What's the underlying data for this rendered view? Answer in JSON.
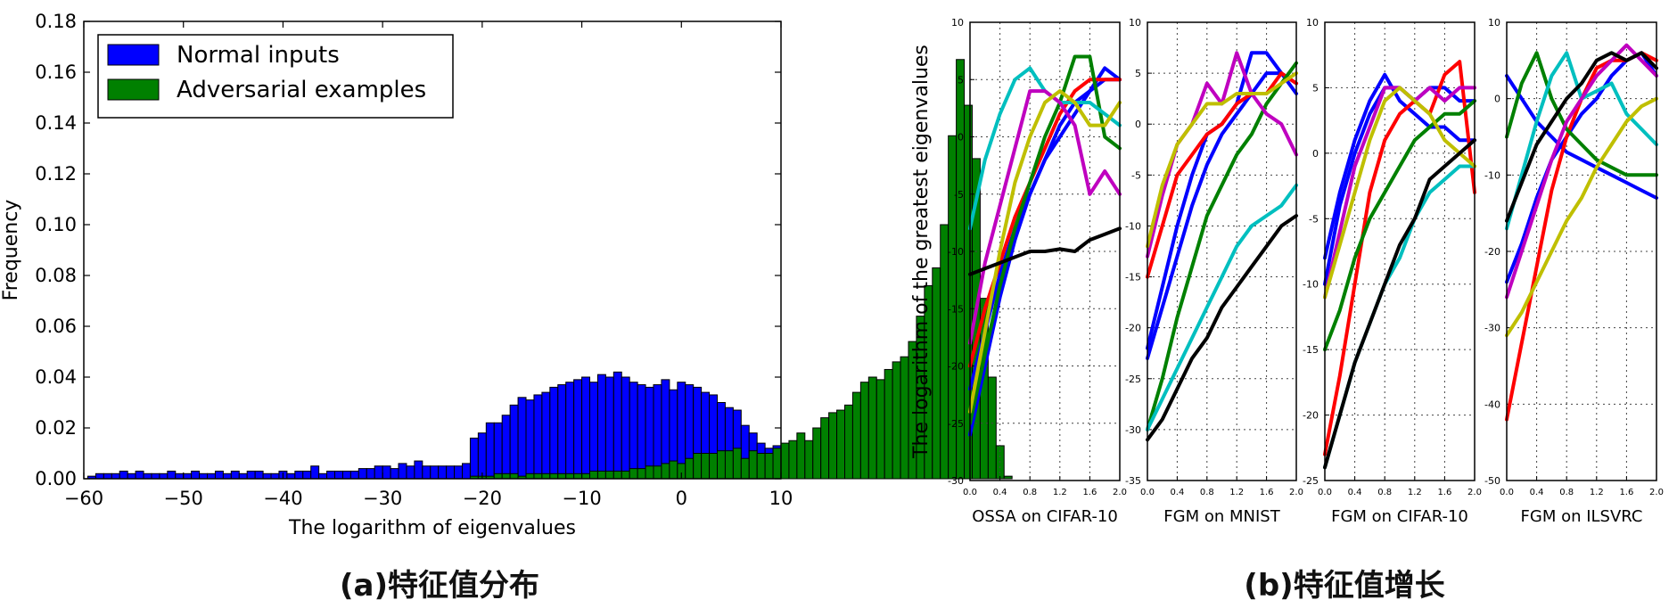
{
  "chart_data": [
    {
      "type": "bar",
      "subtype": "histogram",
      "caption": "(a)特征值分布",
      "xlabel": "The logarithm of eigenvalues",
      "ylabel": "Frequency",
      "xlim": [
        -60,
        10
      ],
      "ylim": [
        0,
        0.18
      ],
      "xticks": [
        -60,
        -50,
        -40,
        -30,
        -20,
        -10,
        0,
        10
      ],
      "xtick_labels": [
        "−60",
        "−50",
        "−40",
        "−30",
        "−20",
        "−10",
        "0",
        "10"
      ],
      "yticks": [
        0,
        0.02,
        0.04,
        0.06,
        0.08,
        0.1,
        0.12,
        0.14,
        0.16,
        0.18
      ],
      "ytick_labels": [
        "0.00",
        "0.02",
        "0.04",
        "0.06",
        "0.08",
        "0.10",
        "0.12",
        "0.14",
        "0.16",
        "0.18"
      ],
      "legend_position": "top-left",
      "series": [
        {
          "name": "Normal inputs",
          "color": "#0000ff",
          "bin_start": -59.6,
          "bin_width": 0.8,
          "values": [
            0.001,
            0.002,
            0.002,
            0.002,
            0.003,
            0.002,
            0.003,
            0.002,
            0.002,
            0.002,
            0.003,
            0.002,
            0.002,
            0.003,
            0.002,
            0.002,
            0.003,
            0.002,
            0.003,
            0.002,
            0.003,
            0.003,
            0.002,
            0.002,
            0.003,
            0.002,
            0.003,
            0.003,
            0.005,
            0.002,
            0.003,
            0.003,
            0.003,
            0.003,
            0.004,
            0.004,
            0.005,
            0.005,
            0.004,
            0.006,
            0.005,
            0.007,
            0.005,
            0.005,
            0.005,
            0.005,
            0.005,
            0.006,
            0.016,
            0.018,
            0.022,
            0.022,
            0.025,
            0.029,
            0.032,
            0.031,
            0.033,
            0.034,
            0.036,
            0.037,
            0.038,
            0.039,
            0.04,
            0.038,
            0.041,
            0.04,
            0.042,
            0.04,
            0.038,
            0.037,
            0.036,
            0.037,
            0.039,
            0.035,
            0.038,
            0.037,
            0.036,
            0.034,
            0.033,
            0.03,
            0.028,
            0.027,
            0.021,
            0.018,
            0.014,
            0.012,
            0.013,
            0.01,
            0.007,
            0.005,
            0.003,
            0.002,
            0.002,
            0.001,
            0.001,
            0.001,
            0.0,
            0.0,
            0.0,
            0.0,
            0.0,
            0.0,
            0.0,
            0.0,
            0.0,
            0.0,
            0.0,
            0.0,
            0.0,
            0.0,
            0.0,
            0.0,
            0.0,
            0.0,
            0.0,
            0.0,
            0.0,
            0.0
          ]
        },
        {
          "name": "Adversarial examples",
          "color": "#008000",
          "bin_start": -59.6,
          "bin_width": 0.8,
          "values": [
            0,
            0,
            0,
            0,
            0,
            0,
            0,
            0,
            0,
            0,
            0,
            0,
            0,
            0,
            0,
            0,
            0,
            0,
            0,
            0,
            0,
            0,
            0,
            0,
            0,
            0,
            0,
            0,
            0,
            0,
            0,
            0,
            0,
            0,
            0,
            0,
            0,
            0,
            0,
            0,
            0,
            0,
            0,
            0,
            0,
            0,
            0,
            0,
            0.001,
            0.001,
            0.001,
            0.002,
            0.002,
            0.002,
            0.001,
            0.002,
            0.002,
            0.002,
            0.002,
            0.002,
            0.002,
            0.002,
            0.002,
            0.003,
            0.003,
            0.003,
            0.003,
            0.003,
            0.004,
            0.004,
            0.005,
            0.005,
            0.006,
            0.007,
            0.006,
            0.008,
            0.01,
            0.01,
            0.01,
            0.011,
            0.011,
            0.012,
            0.008,
            0.011,
            0.01,
            0.01,
            0.012,
            0.014,
            0.015,
            0.018,
            0.015,
            0.02,
            0.024,
            0.026,
            0.027,
            0.029,
            0.034,
            0.038,
            0.04,
            0.039,
            0.043,
            0.046,
            0.048,
            0.054,
            0.064,
            0.076,
            0.083,
            0.1,
            0.135,
            0.165,
            0.147,
            0.126,
            0.071,
            0.04,
            0.013,
            0.001
          ]
        }
      ]
    },
    {
      "type": "line",
      "caption": "(b)特征值增长",
      "ylabel": "The logarithm of the greatest eigenvalues",
      "panels": [
        {
          "xlabel": "OSSA on CIFAR-10",
          "xlim": [
            0,
            2
          ],
          "ylim": [
            -30,
            10
          ],
          "xticks": [
            "0.0",
            "0.4",
            "0.8",
            "1.2",
            "1.6",
            "2.0"
          ],
          "yticks": [
            "10",
            "5",
            "0",
            "-5",
            "-10",
            "-15",
            "-20",
            "-25",
            "-30"
          ],
          "x": [
            0,
            0.2,
            0.4,
            0.6,
            0.8,
            1.0,
            1.2,
            1.4,
            1.6,
            1.8,
            2.0
          ],
          "series": [
            {
              "color": "#0000ff",
              "values": [
                -22,
                -17,
                -12,
                -8,
                -5,
                -2,
                0,
                2,
                4,
                5,
                5
              ]
            },
            {
              "color": "#0000ff",
              "values": [
                -26,
                -20,
                -14,
                -9,
                -5,
                -2,
                1,
                3,
                4,
                6,
                5
              ]
            },
            {
              "color": "#ff0000",
              "values": [
                -20,
                -15,
                -11,
                -7,
                -4,
                -1,
                2,
                4,
                5,
                5,
                5
              ]
            },
            {
              "color": "#008000",
              "values": [
                -25,
                -19,
                -13,
                -8,
                -4,
                0,
                3,
                7,
                7,
                0,
                -1
              ]
            },
            {
              "color": "#00bfbf",
              "values": [
                -8,
                -2,
                2,
                5,
                6,
                4,
                3,
                3,
                3,
                2,
                1
              ]
            },
            {
              "color": "#bf00bf",
              "values": [
                -18,
                -11,
                -6,
                -1,
                4,
                4,
                3,
                1,
                -5,
                -3,
                -5
              ]
            },
            {
              "color": "#bfbf00",
              "values": [
                -24,
                -17,
                -10,
                -4,
                0,
                3,
                4,
                3,
                1,
                1,
                3
              ]
            },
            {
              "color": "#000000",
              "values": [
                -12,
                -11.5,
                -11,
                -10.5,
                -10,
                -10,
                -9.8,
                -10,
                -9,
                -8.5,
                -8
              ]
            }
          ]
        },
        {
          "xlabel": "FGM on MNIST",
          "xlim": [
            0,
            2
          ],
          "ylim": [
            -35,
            10
          ],
          "xticks": [
            "0.0",
            "0.4",
            "0.8",
            "1.2",
            "1.6",
            "2.0"
          ],
          "yticks": [
            "10",
            "5",
            "0",
            "-5",
            "-10",
            "-15",
            "-20",
            "-25",
            "-30",
            "-35"
          ],
          "x": [
            0,
            0.2,
            0.4,
            0.6,
            0.8,
            1.0,
            1.2,
            1.4,
            1.6,
            1.8,
            2.0
          ],
          "series": [
            {
              "color": "#0000ff",
              "values": [
                -23,
                -18,
                -13,
                -8,
                -4,
                -1,
                1,
                3,
                5,
                5,
                4
              ]
            },
            {
              "color": "#0000ff",
              "values": [
                -22,
                -16,
                -10,
                -5,
                -1,
                0,
                2,
                7,
                7,
                5,
                3
              ]
            },
            {
              "color": "#ff0000",
              "values": [
                -15,
                -10,
                -5,
                -3,
                -1,
                0,
                2,
                3,
                3,
                5,
                4
              ]
            },
            {
              "color": "#008000",
              "values": [
                -30,
                -25,
                -19,
                -14,
                -9,
                -6,
                -3,
                -1,
                2,
                4,
                6
              ]
            },
            {
              "color": "#00bfbf",
              "values": [
                -30,
                -27,
                -24,
                -21,
                -18,
                -15,
                -12,
                -10,
                -9,
                -8,
                -6
              ]
            },
            {
              "color": "#bf00bf",
              "values": [
                -13,
                -7,
                -2,
                0,
                4,
                2,
                7,
                3,
                1,
                0,
                -3
              ]
            },
            {
              "color": "#bfbf00",
              "values": [
                -12,
                -6,
                -2,
                0,
                2,
                2,
                3,
                3,
                3,
                4,
                5
              ]
            },
            {
              "color": "#000000",
              "values": [
                -31,
                -29,
                -26,
                -23,
                -21,
                -18,
                -16,
                -14,
                -12,
                -10,
                -9
              ]
            }
          ]
        },
        {
          "xlabel": "FGM on CIFAR-10",
          "xlim": [
            0,
            2
          ],
          "ylim": [
            -25,
            10
          ],
          "xticks": [
            "0.0",
            "0.4",
            "0.8",
            "1.2",
            "1.6",
            "2.0"
          ],
          "yticks": [
            "10",
            "5",
            "0",
            "-5",
            "-10",
            "-15",
            "-20",
            "-25"
          ],
          "x": [
            0,
            0.2,
            0.4,
            0.6,
            0.8,
            1.0,
            1.2,
            1.4,
            1.6,
            1.8,
            2.0
          ],
          "series": [
            {
              "color": "#0000ff",
              "values": [
                -8,
                -3,
                1,
                4,
                6,
                4,
                3,
                2,
                2,
                1,
                1
              ]
            },
            {
              "color": "#0000ff",
              "values": [
                -10,
                -4,
                0,
                3,
                5,
                5,
                4,
                5,
                5,
                4,
                4
              ]
            },
            {
              "color": "#ff0000",
              "values": [
                -23,
                -17,
                -10,
                -3,
                1,
                3,
                4,
                3,
                6,
                7,
                -3
              ]
            },
            {
              "color": "#008000",
              "values": [
                -15,
                -12,
                -8,
                -5,
                -3,
                -1,
                1,
                2,
                3,
                3,
                4
              ]
            },
            {
              "color": "#00bfbf",
              "values": [
                -24,
                -20,
                -16,
                -13,
                -10,
                -8,
                -5,
                -3,
                -2,
                -1,
                -1
              ]
            },
            {
              "color": "#bf00bf",
              "values": [
                -11,
                -6,
                -1,
                2,
                5,
                5,
                4,
                5,
                4,
                5,
                5
              ]
            },
            {
              "color": "#bfbf00",
              "values": [
                -11,
                -7,
                -3,
                1,
                4,
                5,
                4,
                3,
                1,
                0,
                -1
              ]
            },
            {
              "color": "#000000",
              "values": [
                -24,
                -20,
                -16,
                -13,
                -10,
                -7,
                -5,
                -2,
                -1,
                0,
                1
              ]
            }
          ]
        },
        {
          "xlabel": "FGM on ILSVRC",
          "xlim": [
            0,
            2
          ],
          "ylim": [
            -50,
            10
          ],
          "xticks": [
            "0.0",
            "0.4",
            "0.8",
            "1.2",
            "1.6",
            "2.0"
          ],
          "yticks": [
            "10",
            "0",
            "-10",
            "-20",
            "-30",
            "-40",
            "-50"
          ],
          "x": [
            0,
            0.2,
            0.4,
            0.6,
            0.8,
            1.0,
            1.2,
            1.4,
            1.6,
            1.8,
            2.0
          ],
          "series": [
            {
              "color": "#0000ff",
              "values": [
                3,
                0,
                -3,
                -5,
                -7,
                -8,
                -9,
                -10,
                -11,
                -12,
                -13
              ]
            },
            {
              "color": "#0000ff",
              "values": [
                -24,
                -19,
                -13,
                -8,
                -5,
                -2,
                0,
                3,
                5,
                6,
                3
              ]
            },
            {
              "color": "#ff0000",
              "values": [
                -42,
                -32,
                -22,
                -12,
                -5,
                0,
                4,
                5,
                5,
                6,
                5
              ]
            },
            {
              "color": "#008000",
              "values": [
                -5,
                2,
                6,
                0,
                -4,
                -6,
                -8,
                -9,
                -10,
                -10,
                -10
              ]
            },
            {
              "color": "#00bfbf",
              "values": [
                -17,
                -10,
                -3,
                3,
                6,
                0,
                1,
                2,
                -2,
                -4,
                -6
              ]
            },
            {
              "color": "#bf00bf",
              "values": [
                -26,
                -20,
                -14,
                -8,
                -3,
                0,
                3,
                5,
                7,
                5,
                3
              ]
            },
            {
              "color": "#bfbf00",
              "values": [
                -31,
                -28,
                -24,
                -20,
                -16,
                -13,
                -9,
                -6,
                -3,
                -1,
                0
              ]
            },
            {
              "color": "#000000",
              "values": [
                -16,
                -11,
                -6,
                -3,
                0,
                2,
                5,
                6,
                5,
                6,
                4
              ]
            }
          ]
        }
      ]
    }
  ]
}
